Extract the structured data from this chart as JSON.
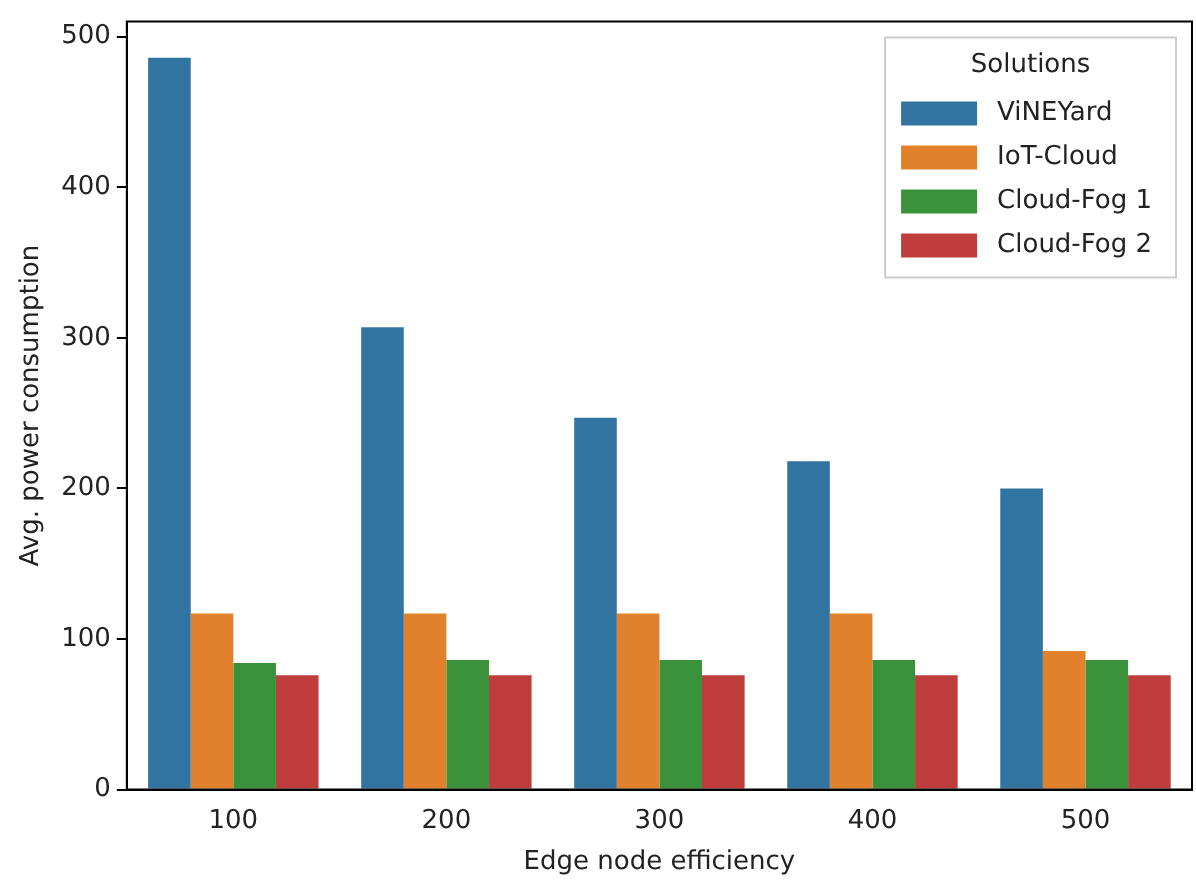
{
  "chart_data": {
    "type": "bar",
    "xlabel": "Edge node efficiency",
    "ylabel": "Avg. power consumption",
    "legend_title": "Solutions",
    "categories": [
      "100",
      "200",
      "300",
      "400",
      "500"
    ],
    "series": [
      {
        "name": "ViNEYard",
        "color": "#3274a1",
        "values": [
          486,
          307,
          247,
          218,
          200
        ]
      },
      {
        "name": "IoT-Cloud",
        "color": "#e1812c",
        "values": [
          117,
          117,
          117,
          117,
          92
        ]
      },
      {
        "name": "Cloud-Fog 1",
        "color": "#3a923a",
        "values": [
          84,
          86,
          86,
          86,
          86
        ]
      },
      {
        "name": "Cloud-Fog 2",
        "color": "#c03d3e",
        "values": [
          76,
          76,
          76,
          76,
          76
        ]
      }
    ],
    "ylim": [
      0,
      510
    ],
    "yticks": [
      0,
      100,
      200,
      300,
      400,
      500
    ],
    "grid": false,
    "legend": "top right"
  }
}
